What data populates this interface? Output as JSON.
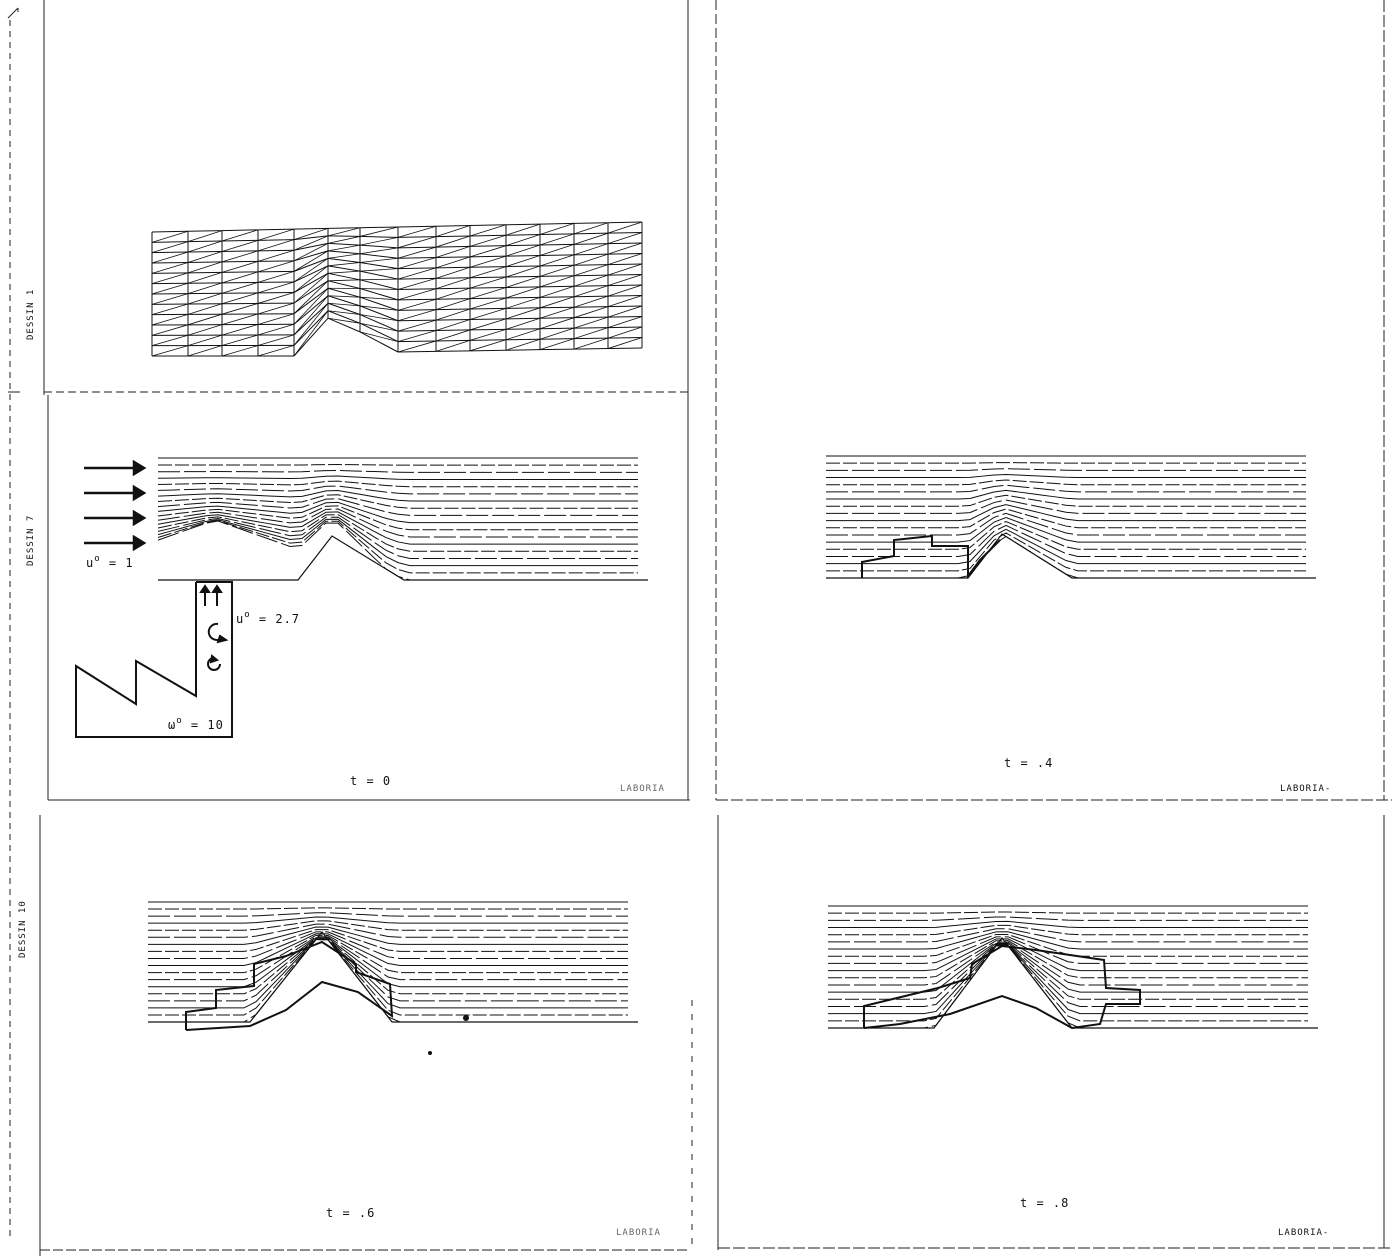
{
  "labels": {
    "dessin_1": "DESSIN 1",
    "dessin_7": "DESSIN 7",
    "dessin_10": "DESSIN 10",
    "t0": "t = 0",
    "t04": "t = .4",
    "t06": "t = .6",
    "t08": "t = .8",
    "u_inflow": "u",
    "u_inflow_sup": "o",
    "u_inflow_val": "= 1",
    "u_jet": "u",
    "u_jet_sup": "o",
    "u_jet_val": "= 2.7",
    "omega": "ω",
    "omega_sup": "o",
    "omega_val": "= 10",
    "laboria_1": "LABORIA",
    "laboria_2": "LABORIA-",
    "laboria_3": "LABORIA",
    "laboria_4": "LABORIA-"
  }
}
